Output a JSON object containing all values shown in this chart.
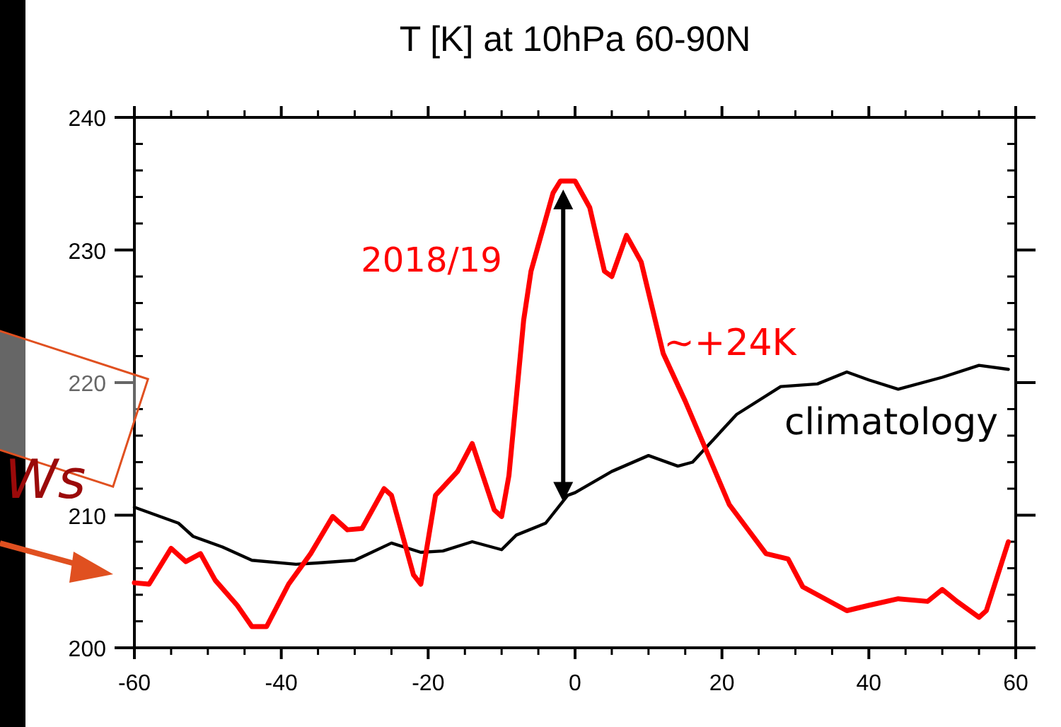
{
  "chart_data": {
    "type": "line",
    "title": "T [K] at 10hPa 60-90N",
    "xlim": [
      -60,
      60
    ],
    "xticks": [
      -60,
      -40,
      -20,
      0,
      20,
      40,
      60
    ],
    "ylim": [
      200,
      240
    ],
    "yticks": [
      200,
      210,
      220,
      230,
      240
    ],
    "grid": false,
    "line_style": "solid",
    "marker": "none",
    "series": [
      {
        "name": "climatology",
        "color": "#000000",
        "x": [
          -60,
          -54,
          -52,
          -48,
          -44,
          -38,
          -35,
          -30,
          -25,
          -21,
          -18,
          -14,
          -10,
          -8,
          -4,
          -1,
          0,
          5,
          10,
          14,
          16,
          22,
          28,
          33,
          37,
          40,
          44,
          50,
          55,
          59
        ],
        "values": [
          210.6,
          209.4,
          208.4,
          207.6,
          206.6,
          206.3,
          206.4,
          206.6,
          207.9,
          207.2,
          207.3,
          208.0,
          207.4,
          208.5,
          209.4,
          211.5,
          211.7,
          213.3,
          214.5,
          213.7,
          214.0,
          217.6,
          219.7,
          219.9,
          220.8,
          220.2,
          219.5,
          220.4,
          221.3,
          221.0
        ]
      },
      {
        "name": "2018/19",
        "color": "#ff0000",
        "x": [
          -60,
          -58,
          -55,
          -53,
          -51,
          -49,
          -46,
          -44,
          -42,
          -39,
          -36,
          -33,
          -31,
          -29,
          -26,
          -25,
          -22,
          -21,
          -19,
          -16,
          -14,
          -11,
          -10,
          -9,
          -7,
          -6,
          -3,
          -2,
          0,
          2,
          4,
          5,
          7,
          9,
          12,
          15,
          21,
          26,
          29,
          31,
          37,
          40,
          44,
          48,
          50,
          52,
          55,
          56,
          59
        ],
        "values": [
          204.9,
          204.8,
          207.5,
          206.5,
          207.1,
          205.1,
          203.2,
          201.6,
          201.6,
          204.8,
          207.1,
          209.9,
          208.9,
          209.0,
          212.0,
          211.5,
          205.5,
          204.8,
          211.5,
          213.3,
          215.4,
          210.4,
          209.9,
          213.0,
          224.7,
          228.4,
          234.3,
          235.2,
          235.2,
          233.2,
          228.4,
          228.0,
          231.1,
          229.1,
          222.2,
          218.6,
          210.8,
          207.1,
          206.7,
          204.6,
          202.8,
          203.2,
          203.7,
          203.5,
          204.4,
          203.5,
          202.3,
          202.8,
          208.0
        ]
      }
    ],
    "annotations": [
      "~+24K",
      "Ws"
    ]
  }
}
